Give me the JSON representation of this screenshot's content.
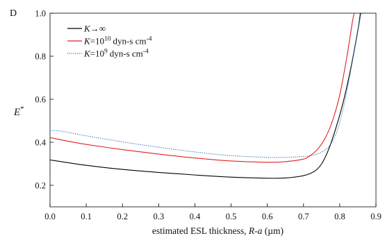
{
  "chart_data": {
    "type": "line",
    "panel_label": "D",
    "xlabel": {
      "prefix": "estimated ESL thickness, ",
      "var": "R-a",
      "unit": " (µm)"
    },
    "ylabel": {
      "base": "E",
      "sup": "*"
    },
    "xlim": [
      0.0,
      0.9
    ],
    "ylim": [
      0.1,
      1.0
    ],
    "xticks": [
      "0.0",
      "0.1",
      "0.2",
      "0.3",
      "0.4",
      "0.5",
      "0.6",
      "0.7",
      "0.8",
      "0.9"
    ],
    "yticks": [
      "0.2",
      "0.4",
      "0.6",
      "0.8",
      "1.0"
    ],
    "grid": false,
    "legend_position": "top-left",
    "series": [
      {
        "name": {
          "var": "K",
          "rest": "→∞",
          "sup": "",
          "unit": "",
          "unit_sup": ""
        },
        "color": "#000000",
        "dash": "",
        "points": [
          [
            0.0,
            0.318
          ],
          [
            0.05,
            0.305
          ],
          [
            0.1,
            0.293
          ],
          [
            0.2,
            0.274
          ],
          [
            0.3,
            0.26
          ],
          [
            0.4,
            0.248
          ],
          [
            0.5,
            0.238
          ],
          [
            0.6,
            0.233
          ],
          [
            0.65,
            0.234
          ],
          [
            0.7,
            0.245
          ],
          [
            0.73,
            0.265
          ],
          [
            0.75,
            0.3
          ],
          [
            0.77,
            0.37
          ],
          [
            0.79,
            0.47
          ],
          [
            0.81,
            0.59
          ],
          [
            0.83,
            0.74
          ],
          [
            0.85,
            0.92
          ],
          [
            0.857,
            1.0
          ]
        ]
      },
      {
        "name": {
          "var": "K",
          "rest": "=10",
          "sup": "10",
          "unit": "dyn-s cm",
          "unit_sup": "-4"
        },
        "color": "#e02020",
        "dash": "",
        "points": [
          [
            0.0,
            0.422
          ],
          [
            0.05,
            0.405
          ],
          [
            0.1,
            0.39
          ],
          [
            0.2,
            0.366
          ],
          [
            0.3,
            0.345
          ],
          [
            0.4,
            0.327
          ],
          [
            0.5,
            0.313
          ],
          [
            0.6,
            0.307
          ],
          [
            0.65,
            0.31
          ],
          [
            0.7,
            0.322
          ],
          [
            0.72,
            0.34
          ],
          [
            0.74,
            0.37
          ],
          [
            0.76,
            0.42
          ],
          [
            0.78,
            0.5
          ],
          [
            0.8,
            0.62
          ],
          [
            0.82,
            0.8
          ],
          [
            0.835,
            0.96
          ],
          [
            0.84,
            1.0
          ]
        ]
      },
      {
        "name": {
          "var": "K",
          "rest": "=10",
          "sup": "9",
          "unit": "dyn-s cm",
          "unit_sup": "-4"
        },
        "color": "#2f6fb5",
        "dash": "1.2 1.6",
        "points": [
          [
            0.0,
            0.455
          ],
          [
            0.03,
            0.452
          ],
          [
            0.05,
            0.446
          ],
          [
            0.1,
            0.43
          ],
          [
            0.2,
            0.402
          ],
          [
            0.3,
            0.377
          ],
          [
            0.4,
            0.355
          ],
          [
            0.5,
            0.338
          ],
          [
            0.6,
            0.33
          ],
          [
            0.65,
            0.33
          ],
          [
            0.7,
            0.334
          ],
          [
            0.73,
            0.342
          ],
          [
            0.75,
            0.355
          ],
          [
            0.77,
            0.38
          ],
          [
            0.79,
            0.44
          ],
          [
            0.81,
            0.56
          ],
          [
            0.83,
            0.73
          ],
          [
            0.85,
            0.92
          ],
          [
            0.86,
            1.0
          ]
        ]
      }
    ]
  }
}
